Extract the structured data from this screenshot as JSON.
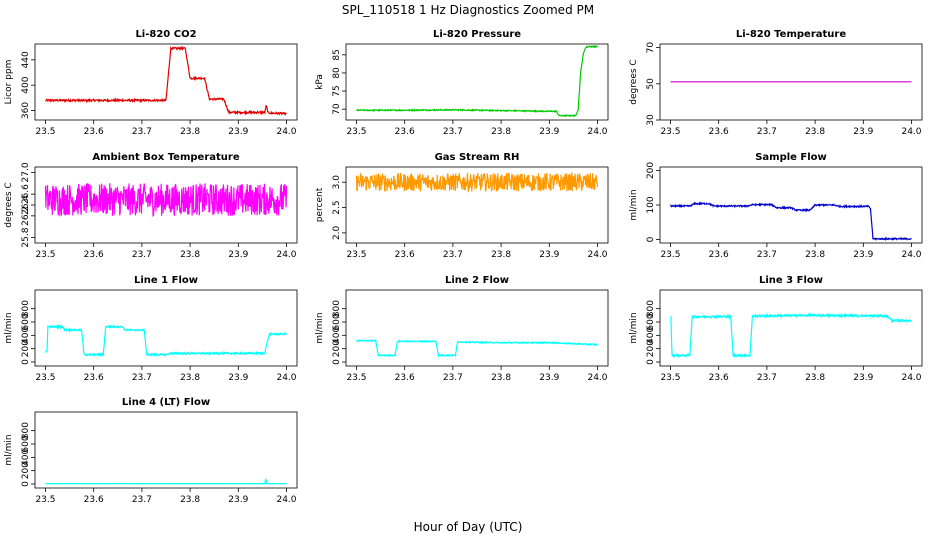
{
  "figure": {
    "title": "SPL_110518  1 Hz Diagnostics Zoomed PM",
    "xlabel": "Hour of Day (UTC)"
  },
  "chart_data": [
    {
      "type": "line",
      "title": "Li-820 CO2",
      "ylabel": "Licor ppm",
      "color": "#e00000",
      "xlim": [
        23.5,
        24.0
      ],
      "ylim": [
        345,
        465
      ],
      "xticks": [
        "23.5",
        "23.6",
        "23.7",
        "23.8",
        "23.9",
        "24.0"
      ],
      "yticks": [
        360,
        400,
        440
      ],
      "series": [
        {
          "x": [
            23.5,
            23.6,
            23.7,
            23.75,
            23.76,
            23.79,
            23.8,
            23.83,
            23.84,
            23.87,
            23.88,
            23.93,
            23.955,
            23.958,
            23.962,
            23.965,
            24.0
          ],
          "y": [
            376,
            376,
            376,
            376,
            458,
            458,
            411,
            411,
            378,
            378,
            357,
            357,
            357,
            368,
            356,
            356,
            355
          ],
          "noise": 1.5
        }
      ]
    },
    {
      "type": "line",
      "title": "Li-820 Pressure",
      "ylabel": "kPa",
      "color": "#00cc00",
      "xlim": [
        23.5,
        24.0
      ],
      "ylim": [
        67,
        88
      ],
      "xticks": [
        "23.5",
        "23.6",
        "23.7",
        "23.8",
        "23.9",
        "24.0"
      ],
      "yticks": [
        70,
        75,
        80,
        85
      ],
      "series": [
        {
          "x": [
            23.5,
            23.6,
            23.7,
            23.8,
            23.9,
            23.915,
            23.92,
            23.955,
            23.96,
            23.965,
            23.97,
            23.975,
            23.98,
            24.0
          ],
          "y": [
            69.7,
            69.7,
            69.8,
            69.6,
            69.4,
            69.4,
            68.2,
            68.2,
            70,
            80,
            85,
            87,
            87.3,
            87.3
          ],
          "noise": 0.15
        }
      ]
    },
    {
      "type": "line",
      "title": "Li-820 Temperature",
      "ylabel": "degrees C",
      "color": "#cc00cc",
      "xlim": [
        23.5,
        24.0
      ],
      "ylim": [
        30,
        72
      ],
      "xticks": [
        "23.5",
        "23.6",
        "23.7",
        "23.8",
        "23.9",
        "24.0"
      ],
      "yticks": [
        30,
        50,
        70
      ],
      "series": [
        {
          "x": [
            23.5,
            24.0
          ],
          "y": [
            51.1,
            51.1
          ],
          "noise": 0
        }
      ]
    },
    {
      "type": "line",
      "title": "Ambient Box Temperature",
      "ylabel": "degrees C",
      "color": "#ff00ff",
      "xlim": [
        23.5,
        24.0
      ],
      "ylim": [
        25.7,
        27.1
      ],
      "xticks": [
        "23.5",
        "23.6",
        "23.7",
        "23.8",
        "23.9",
        "24.0"
      ],
      "yticks": [
        "25.8",
        "26.2",
        "26.4",
        "26.6",
        "27.0"
      ],
      "series": [
        {
          "x": [
            23.5,
            23.7,
            23.9,
            24.0
          ],
          "y": [
            26.5,
            26.5,
            26.5,
            26.5
          ],
          "noise": 0.3
        }
      ]
    },
    {
      "type": "line",
      "title": "Gas Stream RH",
      "ylabel": "percent",
      "color": "#ff9900",
      "xlim": [
        23.5,
        24.0
      ],
      "ylim": [
        1.8,
        3.3
      ],
      "xticks": [
        "23.5",
        "23.6",
        "23.7",
        "23.8",
        "23.9",
        "24.0"
      ],
      "yticks": [
        "2.0",
        "2.5",
        "3.0"
      ],
      "series": [
        {
          "x": [
            23.5,
            23.7,
            23.9,
            24.0
          ],
          "y": [
            3.0,
            3.0,
            3.0,
            3.0
          ],
          "noise": 0.18
        }
      ]
    },
    {
      "type": "line",
      "title": "Sample Flow",
      "ylabel": "ml/min",
      "color": "#0000cc",
      "xlim": [
        23.5,
        24.0
      ],
      "ylim": [
        -10,
        210
      ],
      "xticks": [
        "23.5",
        "23.6",
        "23.7",
        "23.8",
        "23.9",
        "24.0"
      ],
      "yticks": [
        0,
        100,
        200
      ],
      "series": [
        {
          "x": [
            23.5,
            23.54,
            23.55,
            23.58,
            23.59,
            23.66,
            23.67,
            23.71,
            23.72,
            23.75,
            23.76,
            23.79,
            23.8,
            23.84,
            23.85,
            23.91,
            23.915,
            23.92,
            24.0
          ],
          "y": [
            97,
            97,
            104,
            104,
            97,
            97,
            101,
            101,
            92,
            92,
            85,
            85,
            100,
            100,
            96,
            96,
            90,
            2,
            2
          ],
          "noise": 2
        }
      ]
    },
    {
      "type": "line",
      "title": "Line 1 Flow",
      "ylabel": "ml/min",
      "color": "#00ffff",
      "xlim": [
        23.5,
        24.0
      ],
      "ylim": [
        -60,
        1080
      ],
      "xticks": [
        "23.5",
        "23.6",
        "23.7",
        "23.8",
        "23.9",
        "24.0"
      ],
      "yticks": [
        0,
        200,
        400,
        600,
        800
      ],
      "series": [
        {
          "x": [
            23.5,
            23.503,
            23.505,
            23.535,
            23.54,
            23.575,
            23.58,
            23.62,
            23.625,
            23.66,
            23.665,
            23.705,
            23.71,
            23.75,
            23.76,
            23.955,
            23.96,
            23.965,
            24.0
          ],
          "y": [
            150,
            150,
            530,
            530,
            480,
            480,
            110,
            110,
            530,
            530,
            480,
            480,
            110,
            110,
            130,
            130,
            300,
            420,
            420
          ],
          "noise": 12
        }
      ]
    },
    {
      "type": "line",
      "title": "Line 2 Flow",
      "ylabel": "ml/min",
      "color": "#00ffff",
      "xlim": [
        23.5,
        24.0
      ],
      "ylim": [
        -60,
        1080
      ],
      "xticks": [
        "23.5",
        "23.6",
        "23.7",
        "23.8",
        "23.9",
        "24.0"
      ],
      "yticks": [
        0,
        200,
        400,
        600,
        800
      ],
      "series": [
        {
          "x": [
            23.5,
            23.54,
            23.545,
            23.58,
            23.585,
            23.665,
            23.67,
            23.705,
            23.71,
            23.8,
            23.9,
            24.0
          ],
          "y": [
            320,
            320,
            100,
            100,
            310,
            310,
            100,
            100,
            300,
            290,
            290,
            260
          ],
          "noise": 8
        }
      ]
    },
    {
      "type": "line",
      "title": "Line 3 Flow",
      "ylabel": "ml/min",
      "color": "#00ffff",
      "xlim": [
        23.5,
        24.0
      ],
      "ylim": [
        -60,
        1080
      ],
      "xticks": [
        "23.5",
        "23.6",
        "23.7",
        "23.8",
        "23.9",
        "24.0"
      ],
      "yticks": [
        0,
        200,
        400,
        600,
        800
      ],
      "series": [
        {
          "x": [
            23.5,
            23.501,
            23.503,
            23.54,
            23.545,
            23.625,
            23.63,
            23.665,
            23.67,
            23.8,
            23.95,
            23.96,
            24.0
          ],
          "y": [
            670,
            670,
            100,
            100,
            680,
            680,
            100,
            100,
            690,
            700,
            690,
            620,
            620
          ],
          "noise": 15
        }
      ]
    },
    {
      "type": "line",
      "title": "Line 4 (LT) Flow",
      "ylabel": "ml/min",
      "color": "#00ffff",
      "xlim": [
        23.5,
        24.0
      ],
      "ylim": [
        -60,
        1080
      ],
      "xticks": [
        "23.5",
        "23.6",
        "23.7",
        "23.8",
        "23.9",
        "24.0"
      ],
      "yticks": [
        0,
        200,
        400,
        600,
        800
      ],
      "series": [
        {
          "x": [
            23.5,
            23.955,
            23.957,
            23.959,
            23.961,
            24.0
          ],
          "y": [
            5,
            5,
            80,
            10,
            5,
            5
          ],
          "noise": 2
        }
      ]
    }
  ]
}
